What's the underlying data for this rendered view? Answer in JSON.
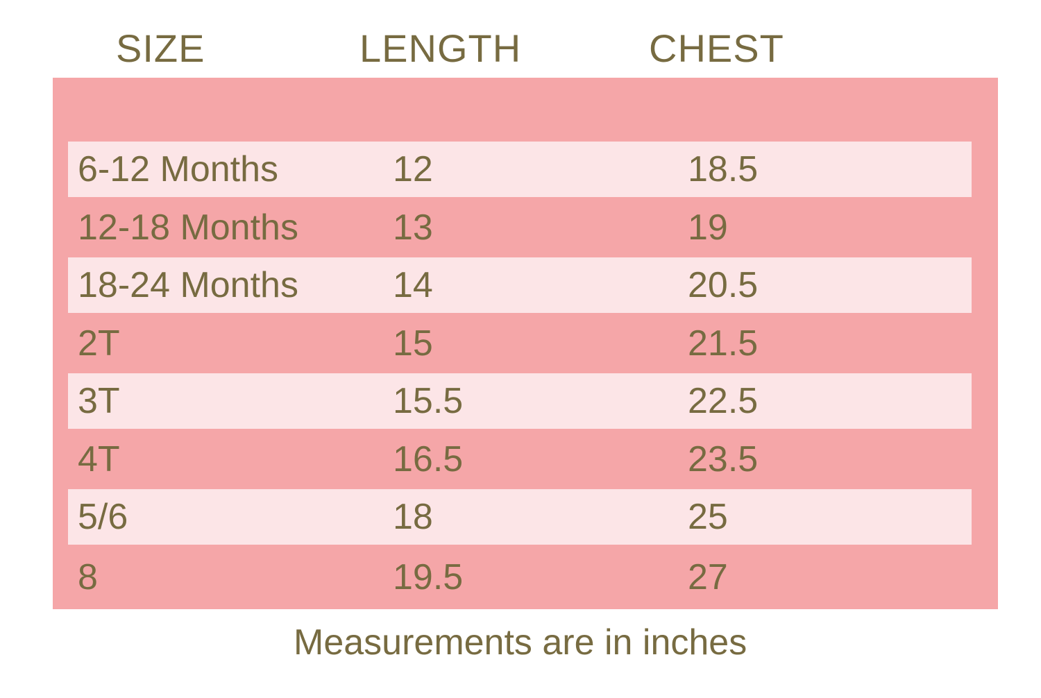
{
  "colors": {
    "row_dark": "#f5a6a8",
    "row_light": "#fce5e7",
    "text": "#776b41",
    "background": "#ffffff"
  },
  "chart_data": {
    "type": "table",
    "title": "",
    "columns": [
      "SIZE",
      "LENGTH",
      "CHEST"
    ],
    "rows": [
      [
        "6-12 Months",
        "12",
        "18.5"
      ],
      [
        "12-18 Months",
        "13",
        "19"
      ],
      [
        "18-24 Months",
        "14",
        "20.5"
      ],
      [
        "2T",
        "15",
        "21.5"
      ],
      [
        "3T",
        "15.5",
        "22.5"
      ],
      [
        "4T",
        "16.5",
        "23.5"
      ],
      [
        "5/6",
        "18",
        "25"
      ],
      [
        "8",
        "19.5",
        "27"
      ]
    ],
    "footnote": "Measurements are in inches",
    "units": "inches"
  }
}
